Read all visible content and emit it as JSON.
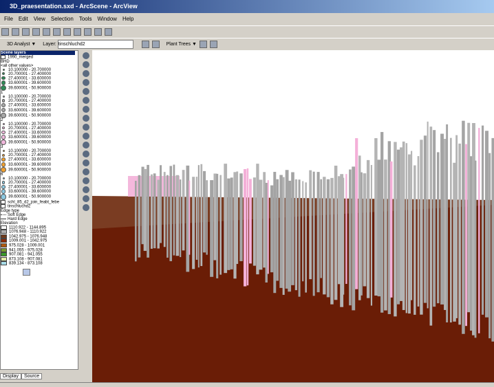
{
  "title_bar": {
    "title": "3D_praesentation.sxd - ArcScene - ArcView"
  },
  "menu": [
    "File",
    "Edit",
    "View",
    "Selection",
    "Tools",
    "Window",
    "Help"
  ],
  "toolbar": {
    "analyst": "3D Analyst ▼",
    "layer_label": "Layer:",
    "layer_value": "tinschluchd2",
    "plant_trees": "Plant Trees ▼"
  },
  "toc": {
    "header": "Scene layers",
    "layers": [
      {
        "name": "1990_merged",
        "field": "BHD",
        "other": "<all other values>",
        "groups": [
          {
            "color": "#2e8b57",
            "classes": [
              "10.100000 - 20.700000",
              "20.700001 - 27.400000",
              "27.400001 - 33.600000",
              "33.600001 - 39.600000",
              "39.600001 - 50.900000"
            ]
          },
          {
            "label": "1",
            "color": "#a8a8a8",
            "classes": [
              "10.100000 - 20.700000",
              "20.700001 - 27.400000",
              "27.400001 - 33.600000",
              "33.600001 - 39.600000",
              "39.600001 - 50.900000"
            ]
          },
          {
            "label": "2",
            "color": "#f0b8dc",
            "classes": [
              "10.100000 - 20.700000",
              "20.700001 - 27.400000",
              "27.400001 - 33.600000",
              "33.600001 - 39.600000",
              "39.600001 - 50.900000"
            ]
          },
          {
            "label": "3",
            "color": "#f0a030",
            "classes": [
              "10.100000 - 20.700000",
              "20.700001 - 27.400000",
              "27.400001 - 33.600000",
              "33.600001 - 39.600000",
              "39.600001 - 50.900000"
            ]
          },
          {
            "label": "6",
            "color": "#8cc8e0",
            "classes": [
              "10.100000 - 20.700000",
              "20.700001 - 27.400000",
              "27.400001 - 33.600000",
              "33.600001 - 39.600000",
              "39.600001 - 50.900000"
            ]
          }
        ]
      },
      {
        "name": "schl_85_d2_join_feabt_febe",
        "swatch": "#b8c8e8"
      },
      {
        "name": "tinschluchd2",
        "edge_title": "Edge type",
        "edges": [
          "Soft Edge",
          "Hard Edge"
        ],
        "elevation_title": "Elevation",
        "elevation": [
          {
            "label": "1110.922 - 1144.895",
            "color": "#ffffff"
          },
          {
            "label": "1076.948 - 1110.922",
            "color": "#b0b0b0"
          },
          {
            "label": "1042.975 - 1076.948",
            "color": "#6e3a1c"
          },
          {
            "label": "1009.001 - 1042.975",
            "color": "#8a2a08"
          },
          {
            "label": "975.028 - 1009.001",
            "color": "#b05a10"
          },
          {
            "label": "941.055 - 975.028",
            "color": "#7a9a30"
          },
          {
            "label": "907.081 - 941.055",
            "color": "#3a9a28"
          },
          {
            "label": "873.108 - 907.081",
            "color": "#e8f0a8"
          },
          {
            "label": "839.134 - 873.108",
            "color": "#a8dce8"
          }
        ]
      }
    ]
  },
  "tabs": [
    "Display",
    "Source"
  ]
}
